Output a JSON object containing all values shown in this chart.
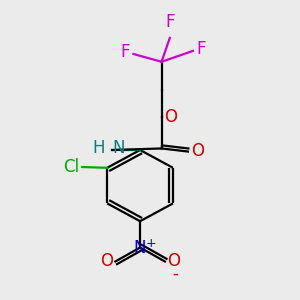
{
  "background_color": "#ebebeb",
  "figsize": [
    3.0,
    3.0
  ],
  "dpi": 100,
  "colors": {
    "black": "#000000",
    "red": "#cc0000",
    "green": "#00aa00",
    "blue": "#0000cc",
    "magenta": "#cc00cc",
    "teal": "#008080"
  },
  "xlim": [
    0.05,
    0.95
  ],
  "ylim": [
    0.02,
    0.98
  ]
}
